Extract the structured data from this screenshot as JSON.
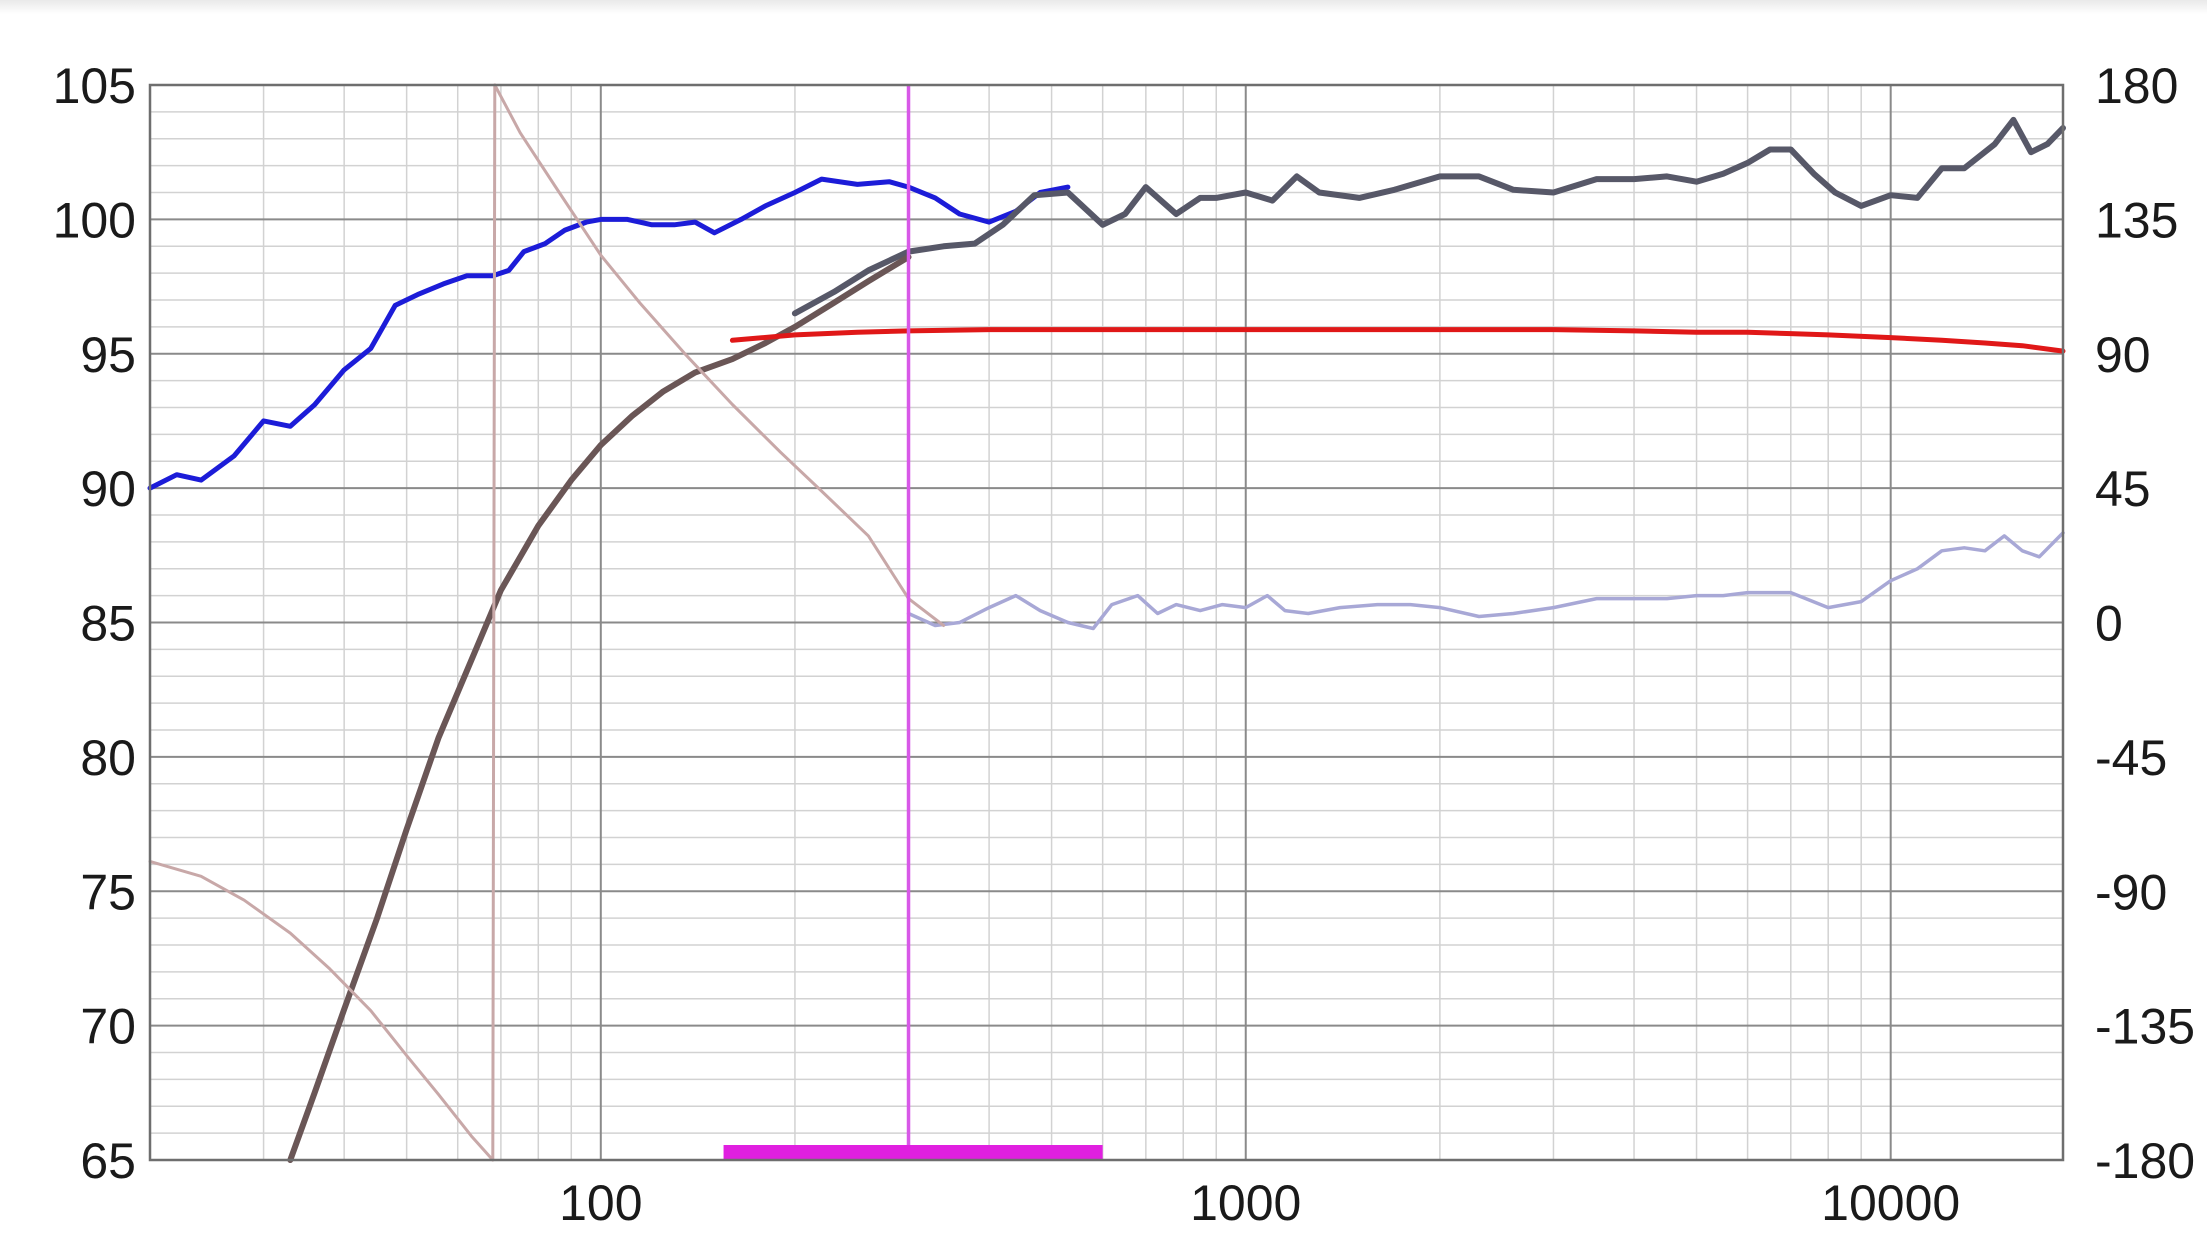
{
  "chart_data": {
    "type": "line",
    "title": "",
    "xlabel": "",
    "ylabel": "",
    "x_scale": "log",
    "xlim": [
      20,
      18500
    ],
    "ylim_left": [
      65,
      105
    ],
    "ylim_right": [
      -180,
      180
    ],
    "grid": true,
    "legend": "none",
    "x_ticks": [
      {
        "value": 100,
        "label": "100"
      },
      {
        "value": 1000,
        "label": "1000"
      },
      {
        "value": 10000,
        "label": "10000"
      }
    ],
    "y_left_ticks": [
      {
        "value": 105,
        "label": "105"
      },
      {
        "value": 100,
        "label": "100"
      },
      {
        "value": 95,
        "label": "95"
      },
      {
        "value": 90,
        "label": "90"
      },
      {
        "value": 85,
        "label": "85"
      },
      {
        "value": 80,
        "label": "80"
      },
      {
        "value": 75,
        "label": "75"
      },
      {
        "value": 70,
        "label": "70"
      },
      {
        "value": 65,
        "label": "65"
      }
    ],
    "y_right_ticks": [
      {
        "value": 180,
        "label": "180"
      },
      {
        "value": 135,
        "label": "135"
      },
      {
        "value": 90,
        "label": "90"
      },
      {
        "value": 45,
        "label": "45"
      },
      {
        "value": 0,
        "label": "0"
      },
      {
        "value": -45,
        "label": "-45"
      },
      {
        "value": -90,
        "label": "-90"
      },
      {
        "value": -135,
        "label": "-135"
      },
      {
        "value": -180,
        "label": "-180"
      }
    ],
    "cursor_frequency": 300,
    "cursor_range": [
      155,
      600
    ],
    "series": [
      {
        "axis": "left",
        "color": "#1c1cd8",
        "width": 5,
        "x": [
          20,
          22,
          24,
          27,
          30,
          33,
          36,
          40,
          44,
          48,
          52,
          57,
          62,
          68,
          72,
          76,
          82,
          88,
          95,
          100,
          110,
          120,
          130,
          140,
          150,
          165,
          180,
          200,
          220,
          250,
          280,
          300,
          330,
          360,
          400,
          440,
          480,
          530
        ],
        "y": [
          90.0,
          90.5,
          90.3,
          91.2,
          92.5,
          92.3,
          93.1,
          94.4,
          95.2,
          96.8,
          97.2,
          97.6,
          97.9,
          97.9,
          98.1,
          98.8,
          99.1,
          99.6,
          99.9,
          100.0,
          100.0,
          99.8,
          99.8,
          99.9,
          99.5,
          100.0,
          100.5,
          101.0,
          101.5,
          101.3,
          101.4,
          101.2,
          100.8,
          100.2,
          99.9,
          100.3,
          101.0,
          101.2
        ]
      },
      {
        "axis": "left",
        "color": "#575868",
        "width": 6,
        "x": [
          200,
          230,
          260,
          300,
          340,
          380,
          420,
          470,
          530,
          600,
          650,
          700,
          780,
          850,
          900,
          1000,
          1100,
          1200,
          1300,
          1500,
          1700,
          2000,
          2300,
          2600,
          3000,
          3500,
          4000,
          4500,
          5000,
          5500,
          6000,
          6500,
          7000,
          7600,
          8200,
          9000,
          10000,
          11000,
          12000,
          13000,
          14500,
          15500,
          16500,
          17500,
          18500
        ],
        "y": [
          96.5,
          97.3,
          98.1,
          98.8,
          99.0,
          99.1,
          99.8,
          100.9,
          101.0,
          99.8,
          100.2,
          101.2,
          100.2,
          100.8,
          100.8,
          101.0,
          100.7,
          101.6,
          101.0,
          100.8,
          101.1,
          101.6,
          101.6,
          101.1,
          101.0,
          101.5,
          101.5,
          101.6,
          101.4,
          101.7,
          102.1,
          102.6,
          102.6,
          101.7,
          101.0,
          100.5,
          100.9,
          100.8,
          101.9,
          101.9,
          102.8,
          103.7,
          102.5,
          102.8,
          103.4
        ]
      },
      {
        "axis": "left",
        "color": "#6a5656",
        "width": 6,
        "x": [
          33,
          36,
          40,
          45,
          50,
          56,
          63,
          70,
          80,
          90,
          100,
          112,
          125,
          140,
          160,
          180,
          200,
          230,
          260,
          300
        ],
        "y": [
          65.0,
          67.5,
          70.6,
          74.0,
          77.3,
          80.7,
          83.6,
          86.2,
          88.6,
          90.3,
          91.6,
          92.7,
          93.6,
          94.3,
          94.8,
          95.4,
          96.0,
          96.9,
          97.7,
          98.6
        ]
      },
      {
        "axis": "left",
        "color": "#e01818",
        "width": 5,
        "x": [
          160,
          200,
          250,
          300,
          400,
          500,
          700,
          1000,
          1500,
          2000,
          3000,
          4000,
          5000,
          6000,
          7000,
          8000,
          10000,
          12000,
          14000,
          16000,
          18500
        ],
        "y": [
          95.5,
          95.7,
          95.8,
          95.85,
          95.9,
          95.9,
          95.9,
          95.9,
          95.9,
          95.9,
          95.9,
          95.85,
          95.8,
          95.8,
          95.75,
          95.7,
          95.6,
          95.5,
          95.4,
          95.3,
          95.1
        ]
      },
      {
        "axis": "right",
        "color": "#a8a8d6",
        "width": 3.5,
        "x": [
          300,
          330,
          360,
          400,
          440,
          480,
          530,
          580,
          620,
          680,
          730,
          780,
          850,
          920,
          1000,
          1080,
          1150,
          1250,
          1400,
          1600,
          1800,
          2000,
          2300,
          2600,
          3000,
          3500,
          4000,
          4500,
          5000,
          5500,
          6000,
          7000,
          8000,
          9000,
          10000,
          11000,
          12000,
          13000,
          14000,
          15000,
          16000,
          17000,
          18500
        ],
        "y": [
          3.0,
          -1.0,
          0.0,
          5.0,
          9.0,
          4.0,
          0.0,
          -2.0,
          6.0,
          9.0,
          3.0,
          6.0,
          4.0,
          6.0,
          5.0,
          9.0,
          4.0,
          3.0,
          5.0,
          6.0,
          6.0,
          5.0,
          2.0,
          3.0,
          5.0,
          8.0,
          8.0,
          8.0,
          9.0,
          9.0,
          10.0,
          10.0,
          5.0,
          7.0,
          14.0,
          18.0,
          24.0,
          25.0,
          24.0,
          29.0,
          24.0,
          22.0,
          30.0
        ]
      },
      {
        "axis": "right",
        "color": "#c8a8a8",
        "width": 3,
        "x": [
          20,
          24,
          28,
          33,
          38,
          44,
          50,
          56,
          63,
          68
        ],
        "y": [
          -80.0,
          -85.0,
          -93.0,
          -104.0,
          -116.0,
          -130.0,
          -145.0,
          -158.0,
          -172.0,
          -180.0
        ]
      },
      {
        "axis": "right",
        "color": "#c8a8a8",
        "width": 3,
        "x": [
          68,
          68.5
        ],
        "y": [
          -180.0,
          180.0
        ]
      },
      {
        "axis": "right",
        "color": "#c8a8a8",
        "width": 3,
        "x": [
          68.5,
          75,
          85,
          100,
          115,
          135,
          160,
          190,
          220,
          260,
          300,
          340
        ],
        "y": [
          180.0,
          164.0,
          146.0,
          123.0,
          107.0,
          90.0,
          73.0,
          57.0,
          44.0,
          29.0,
          8.0,
          -1.0
        ]
      }
    ]
  }
}
